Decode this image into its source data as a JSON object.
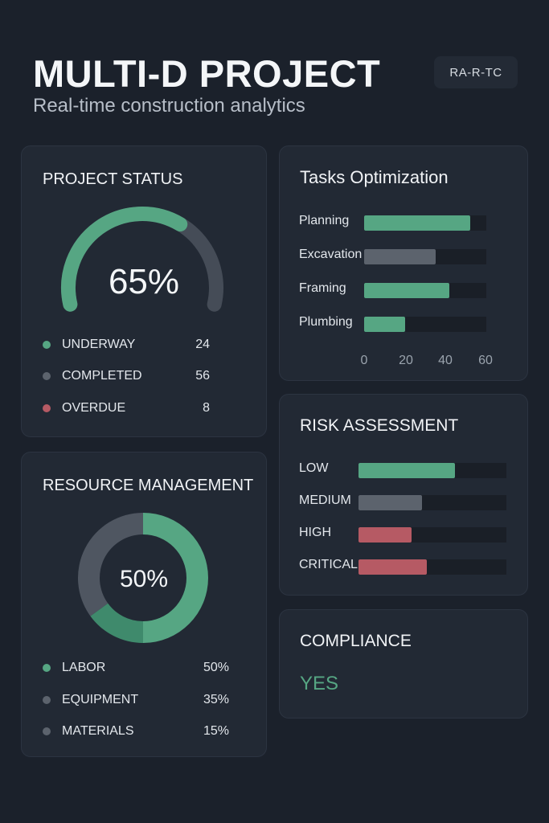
{
  "header": {
    "title": "MULTI-D PROJECT",
    "subtitle": "Real-time construction analytics",
    "badge": "RA-R-TC"
  },
  "project_status": {
    "title": "PROJECT STATUS",
    "percent_label": "65%",
    "percent": 65,
    "legend": [
      {
        "label": "UNDERWAY",
        "value": "24",
        "color": "#56a683"
      },
      {
        "label": "COMPLETED",
        "value": "56",
        "color": "#5c636d"
      },
      {
        "label": "OVERDUE",
        "value": "8",
        "color": "#b65a64"
      }
    ]
  },
  "tasks": {
    "title": "Tasks Optimization",
    "axis_max": 60,
    "ticks": [
      "0",
      "20",
      "40",
      "60"
    ],
    "bars": [
      {
        "label": "Planning",
        "value": 52,
        "color": "#56a683"
      },
      {
        "label": "Excavation",
        "value": 35,
        "color": "#5c636d"
      },
      {
        "label": "Framing",
        "value": 42,
        "color": "#56a683"
      },
      {
        "label": "Plumbing",
        "value": 20,
        "color": "#56a683"
      }
    ]
  },
  "resource": {
    "title": "RESOURCE MANAGEMENT",
    "center_label": "50%",
    "legend": [
      {
        "label": "LABOR",
        "value": "50%",
        "share": 50,
        "color": "#56a683"
      },
      {
        "label": "EQUIPMENT",
        "value": "35%",
        "share": 35,
        "color": "#5c636d"
      },
      {
        "label": "MATERIALS",
        "value": "15%",
        "share": 15,
        "color": "#5c636d"
      }
    ]
  },
  "risk": {
    "title": "RISK ASSESSMENT",
    "bars": [
      {
        "label": "LOW",
        "fraction": 0.65,
        "color": "#56a683"
      },
      {
        "label": "MEDIUM",
        "fraction": 0.43,
        "color": "#5c636d"
      },
      {
        "label": "HIGH",
        "fraction": 0.36,
        "color": "#b65a64"
      },
      {
        "label": "CRITICAL",
        "fraction": 0.46,
        "color": "#b65a64"
      }
    ]
  },
  "compliance": {
    "title": "COMPLIANCE",
    "value": "YES",
    "color": "#56a683"
  }
}
